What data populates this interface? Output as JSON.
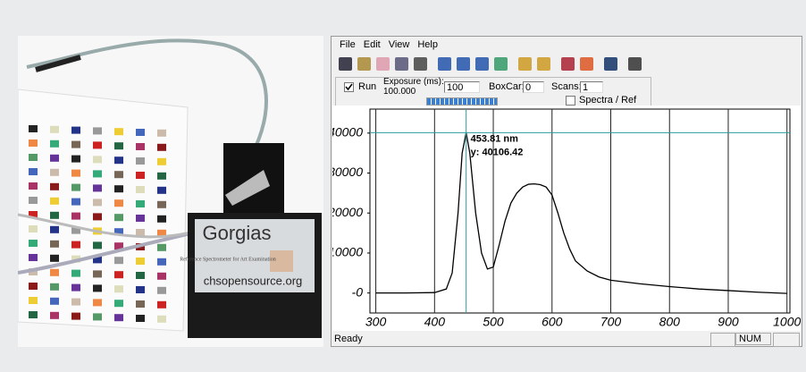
{
  "photo": {
    "brand": "Gorgias",
    "subtitle": "Reference Spectrometer for Art Examination",
    "url": "chsopensource.org"
  },
  "window": {
    "menu": [
      "File",
      "Edit",
      "View",
      "Help"
    ],
    "controls": {
      "run_label": "Run",
      "run_checked": true,
      "exposure_label": "Exposure (ms):",
      "exposure_value": "100.000",
      "exposure_input": "100",
      "boxcar_label": "BoxCar:",
      "boxcar_input": "0",
      "scans_label": "Scans:",
      "scans_input": "1",
      "spectra_ref_label": "Spectra / Ref",
      "spectra_ref_checked": false
    },
    "status": {
      "text": "Ready",
      "num": "NUM"
    }
  },
  "chart_data": {
    "type": "line",
    "color": "#000000",
    "x": [
      300,
      350,
      400,
      420,
      430,
      440,
      447,
      453.81,
      460,
      470,
      480,
      490,
      500,
      510,
      520,
      530,
      540,
      550,
      560,
      570,
      580,
      590,
      600,
      610,
      620,
      630,
      640,
      660,
      680,
      700,
      750,
      800,
      850,
      900,
      950,
      1000
    ],
    "values": [
      0,
      0,
      100,
      1000,
      5000,
      20000,
      35000,
      40106.42,
      35000,
      20000,
      10000,
      6000,
      6500,
      12000,
      18000,
      22500,
      25000,
      26500,
      27200,
      27300,
      27100,
      26500,
      24500,
      20000,
      15000,
      11000,
      8000,
      5500,
      4000,
      3200,
      2300,
      1600,
      1000,
      600,
      200,
      -100
    ],
    "xlim": [
      290,
      1005
    ],
    "ylim": [
      -5000,
      46000
    ],
    "xticks": [
      300,
      400,
      500,
      600,
      700,
      800,
      900,
      1000
    ],
    "yticks": [
      {
        "value": 0,
        "label": "-0"
      },
      10000,
      20000,
      30000,
      40000
    ],
    "grid": true,
    "cursor": {
      "x": 453.81,
      "y": 40106.42,
      "x_label": "453.81 nm",
      "y_label": "y: 40106.42",
      "color": "#2a9d9d"
    }
  }
}
